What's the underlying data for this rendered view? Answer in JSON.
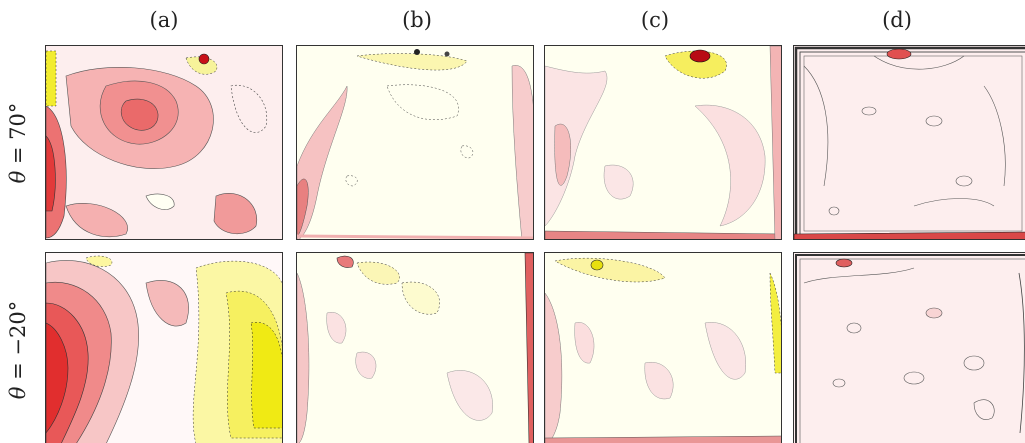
{
  "columns": [
    "(a)",
    "(b)",
    "(c)",
    "(d)"
  ],
  "rows": [
    {
      "symbol": "θ",
      "eq": " = ",
      "value": "70°"
    },
    {
      "symbol": "θ",
      "eq": " = ",
      "value": "−20°"
    }
  ],
  "colormap": {
    "positive_strong": "#e0141e",
    "positive_mid": "#f07a7a",
    "positive_weak": "#fde4e4",
    "background": "#fffff3",
    "negative_weak": "#fdfbc8",
    "negative_strong": "#f3ef14",
    "contour_line": "#333333"
  }
}
